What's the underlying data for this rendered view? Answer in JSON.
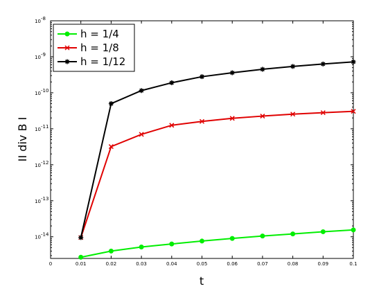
{
  "chart_data": {
    "type": "line",
    "title": "",
    "xlabel": "t",
    "ylabel": "II div B I",
    "xlim": [
      0,
      0.1
    ],
    "ylim": [
      2.5e-15,
      1e-08
    ],
    "yscale": "log",
    "grid": false,
    "legend_position": "top-left",
    "x_ticks": [
      0,
      0.01,
      0.02,
      0.03,
      0.04,
      0.05,
      0.06,
      0.07,
      0.08,
      0.09,
      0.1
    ],
    "x_tick_labels": [
      "0",
      "0.01",
      "0.02",
      "0.03",
      "0.04",
      "0.05",
      "0.06",
      "0.07",
      "0.08",
      "0.09",
      "0.1"
    ],
    "y_ticks": [
      1e-14,
      1e-13,
      1e-12,
      1e-11,
      1e-10,
      1e-09,
      1e-08
    ],
    "y_tick_exponents": [
      "-14",
      "-13",
      "-12",
      "-11",
      "-10",
      "-9",
      "-8"
    ],
    "y_tick_base": "10",
    "x": [
      0.01,
      0.02,
      0.03,
      0.04,
      0.05,
      0.06,
      0.07,
      0.08,
      0.09,
      0.1
    ],
    "series": [
      {
        "name": "h = 1/4",
        "color": "#00ee00",
        "marker": "circle",
        "values": [
          2.7e-15,
          4e-15,
          5.2e-15,
          6.3e-15,
          7.6e-15,
          9e-15,
          1.05e-14,
          1.2e-14,
          1.38e-14,
          1.55e-14
        ]
      },
      {
        "name": "h = 1/8",
        "color": "#e00000",
        "marker": "x",
        "values": [
          9.5e-15,
          3.2e-12,
          7e-12,
          1.25e-11,
          1.6e-11,
          1.95e-11,
          2.25e-11,
          2.55e-11,
          2.8e-11,
          3.05e-11
        ]
      },
      {
        "name": "h = 1/12",
        "color": "#000000",
        "marker": "star",
        "values": [
          9.5e-15,
          5e-11,
          1.15e-10,
          1.9e-10,
          2.8e-10,
          3.6e-10,
          4.5e-10,
          5.4e-10,
          6.3e-10,
          7.2e-10
        ]
      }
    ]
  }
}
